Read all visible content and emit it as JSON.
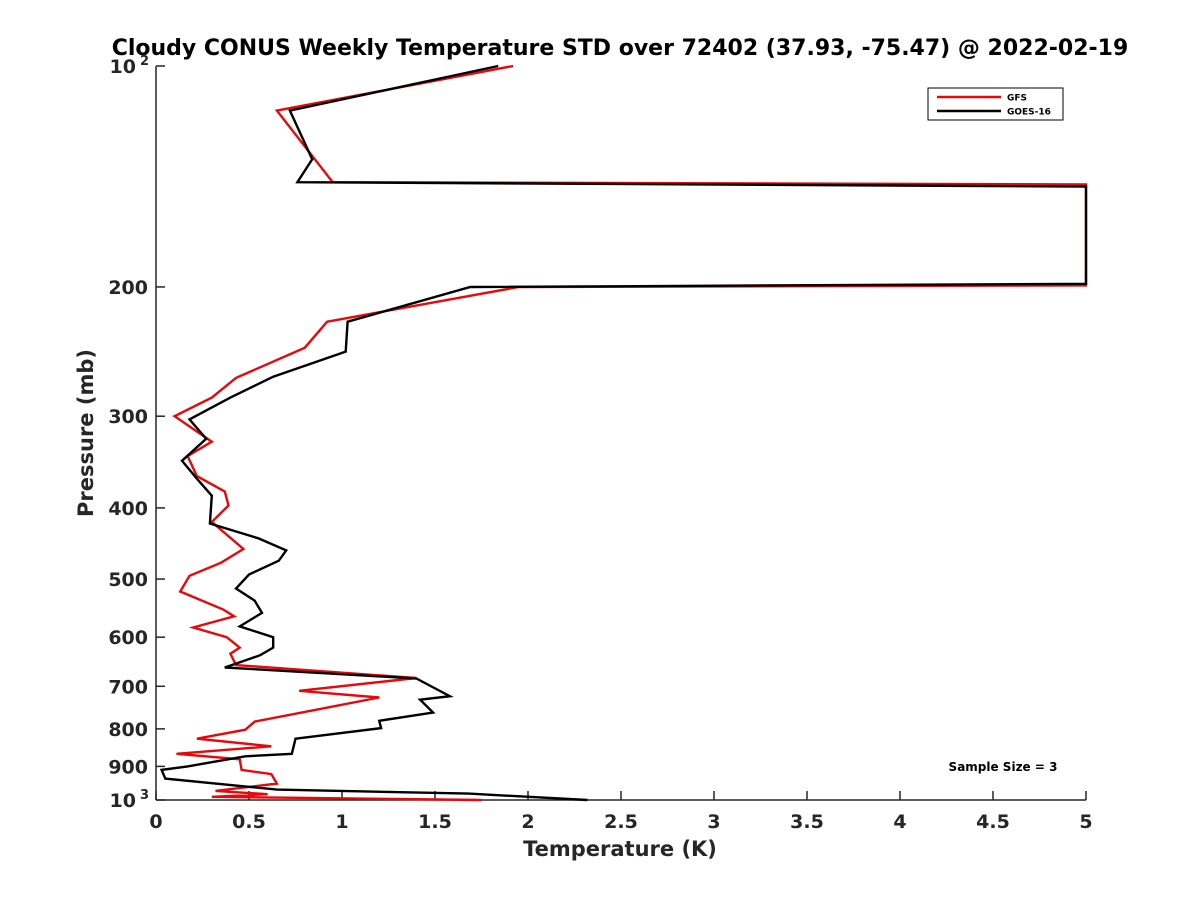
{
  "chart_data": {
    "type": "line",
    "title": "Cloudy CONUS Weekly Temperature STD over 72402 (37.93, -75.47) @ 2022-02-19",
    "xlabel": "Temperature (K)",
    "ylabel": "Pressure (mb)",
    "xlim": [
      0,
      5
    ],
    "ylim": [
      100,
      1000
    ],
    "y_scale": "log",
    "y_reversed": true,
    "x_ticks": [
      "0",
      "0.5",
      "1",
      "1.5",
      "2",
      "2.5",
      "3",
      "3.5",
      "4",
      "4.5",
      "5"
    ],
    "y_ticks": [
      {
        "value": 100,
        "base": "10",
        "exp": "2"
      },
      {
        "value": 200,
        "label": "200"
      },
      {
        "value": 300,
        "label": "300"
      },
      {
        "value": 400,
        "label": "400"
      },
      {
        "value": 500,
        "label": "500"
      },
      {
        "value": 600,
        "label": "600"
      },
      {
        "value": 700,
        "label": "700"
      },
      {
        "value": 800,
        "label": "800"
      },
      {
        "value": 900,
        "label": "900"
      },
      {
        "value": 1000,
        "base": "10",
        "exp": "3"
      }
    ],
    "grid": false,
    "legend_position": "top-right",
    "annotation": "Sample Size = 3",
    "series": [
      {
        "name": "GFS",
        "color": "#e8070a",
        "points": [
          {
            "x": 1.92,
            "y": 100
          },
          {
            "x": 0.65,
            "y": 115
          },
          {
            "x": 0.95,
            "y": 144
          },
          {
            "x": 5.0,
            "y": 145
          },
          {
            "x": 5.0,
            "y": 199
          },
          {
            "x": 1.95,
            "y": 200
          },
          {
            "x": 0.92,
            "y": 223
          },
          {
            "x": 0.8,
            "y": 242
          },
          {
            "x": 0.43,
            "y": 266
          },
          {
            "x": 0.3,
            "y": 283
          },
          {
            "x": 0.1,
            "y": 300
          },
          {
            "x": 0.3,
            "y": 325
          },
          {
            "x": 0.17,
            "y": 340
          },
          {
            "x": 0.22,
            "y": 362
          },
          {
            "x": 0.37,
            "y": 380
          },
          {
            "x": 0.39,
            "y": 397
          },
          {
            "x": 0.3,
            "y": 418
          },
          {
            "x": 0.47,
            "y": 455
          },
          {
            "x": 0.35,
            "y": 475
          },
          {
            "x": 0.18,
            "y": 495
          },
          {
            "x": 0.13,
            "y": 520
          },
          {
            "x": 0.36,
            "y": 550
          },
          {
            "x": 0.42,
            "y": 562
          },
          {
            "x": 0.2,
            "y": 582
          },
          {
            "x": 0.38,
            "y": 600
          },
          {
            "x": 0.45,
            "y": 620
          },
          {
            "x": 0.4,
            "y": 632
          },
          {
            "x": 0.43,
            "y": 655
          },
          {
            "x": 1.4,
            "y": 682
          },
          {
            "x": 0.77,
            "y": 710
          },
          {
            "x": 1.2,
            "y": 725
          },
          {
            "x": 0.88,
            "y": 752
          },
          {
            "x": 0.53,
            "y": 782
          },
          {
            "x": 0.48,
            "y": 802
          },
          {
            "x": 0.22,
            "y": 825
          },
          {
            "x": 0.62,
            "y": 845
          },
          {
            "x": 0.11,
            "y": 865
          },
          {
            "x": 0.45,
            "y": 880
          },
          {
            "x": 0.46,
            "y": 910
          },
          {
            "x": 0.62,
            "y": 922
          },
          {
            "x": 0.65,
            "y": 950
          },
          {
            "x": 0.32,
            "y": 972
          },
          {
            "x": 0.6,
            "y": 982
          },
          {
            "x": 0.3,
            "y": 990
          },
          {
            "x": 1.75,
            "y": 1000
          }
        ]
      },
      {
        "name": "GOES-16",
        "color": "#000000",
        "points": [
          {
            "x": 1.84,
            "y": 100
          },
          {
            "x": 0.72,
            "y": 115
          },
          {
            "x": 0.84,
            "y": 134
          },
          {
            "x": 0.76,
            "y": 144
          },
          {
            "x": 5.0,
            "y": 146
          },
          {
            "x": 5.0,
            "y": 198
          },
          {
            "x": 1.69,
            "y": 200
          },
          {
            "x": 1.03,
            "y": 223
          },
          {
            "x": 1.02,
            "y": 245
          },
          {
            "x": 0.63,
            "y": 265
          },
          {
            "x": 0.4,
            "y": 283
          },
          {
            "x": 0.18,
            "y": 303
          },
          {
            "x": 0.27,
            "y": 322
          },
          {
            "x": 0.14,
            "y": 345
          },
          {
            "x": 0.22,
            "y": 365
          },
          {
            "x": 0.3,
            "y": 385
          },
          {
            "x": 0.29,
            "y": 420
          },
          {
            "x": 0.55,
            "y": 440
          },
          {
            "x": 0.7,
            "y": 457
          },
          {
            "x": 0.66,
            "y": 472
          },
          {
            "x": 0.5,
            "y": 493
          },
          {
            "x": 0.43,
            "y": 515
          },
          {
            "x": 0.53,
            "y": 535
          },
          {
            "x": 0.57,
            "y": 556
          },
          {
            "x": 0.45,
            "y": 580
          },
          {
            "x": 0.63,
            "y": 600
          },
          {
            "x": 0.63,
            "y": 620
          },
          {
            "x": 0.56,
            "y": 635
          },
          {
            "x": 0.37,
            "y": 660
          },
          {
            "x": 1.4,
            "y": 683
          },
          {
            "x": 1.58,
            "y": 722
          },
          {
            "x": 1.42,
            "y": 730
          },
          {
            "x": 1.49,
            "y": 760
          },
          {
            "x": 1.2,
            "y": 780
          },
          {
            "x": 1.21,
            "y": 798
          },
          {
            "x": 0.75,
            "y": 825
          },
          {
            "x": 0.73,
            "y": 865
          },
          {
            "x": 0.48,
            "y": 872
          },
          {
            "x": 0.17,
            "y": 900
          },
          {
            "x": 0.03,
            "y": 910
          },
          {
            "x": 0.05,
            "y": 935
          },
          {
            "x": 0.65,
            "y": 968
          },
          {
            "x": 1.68,
            "y": 980
          },
          {
            "x": 2.32,
            "y": 1000
          }
        ]
      }
    ]
  }
}
